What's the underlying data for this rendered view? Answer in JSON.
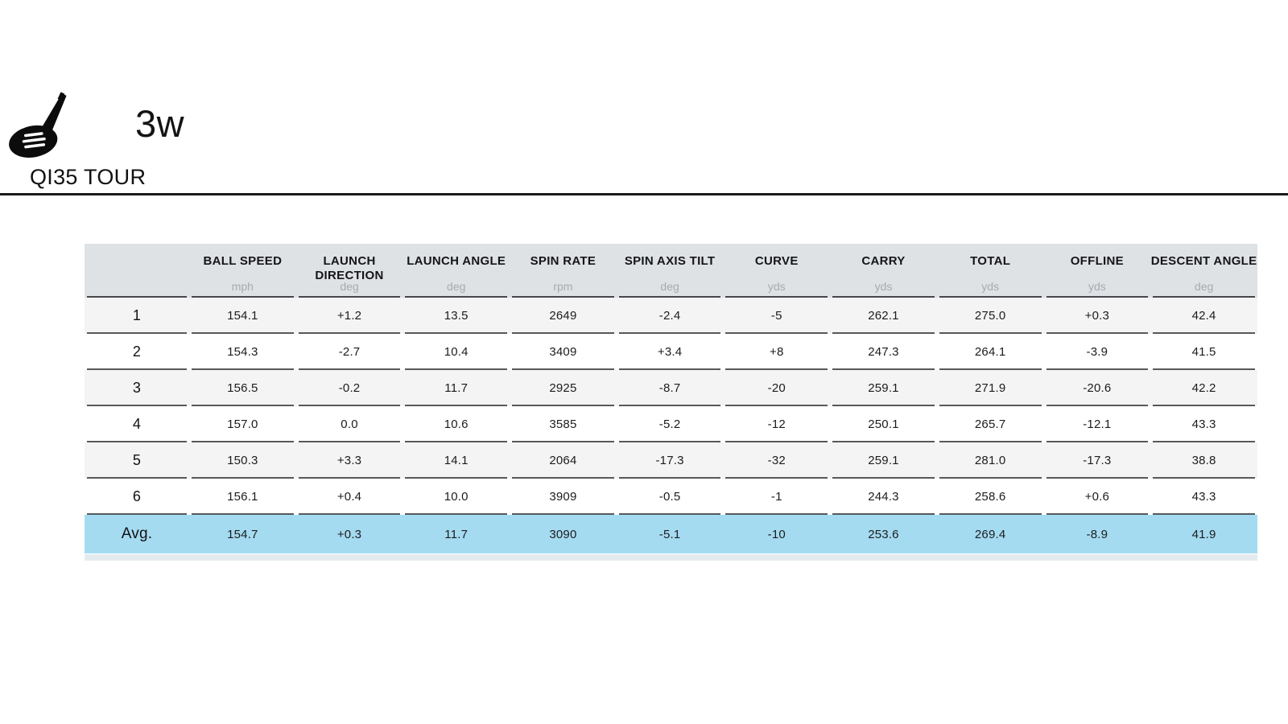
{
  "header": {
    "club_label": "3w",
    "club_model": "QI35 TOUR",
    "icon": "fairway-wood-club-icon"
  },
  "table": {
    "columns": [
      {
        "label": "BALL SPEED",
        "unit": "mph"
      },
      {
        "label": "LAUNCH DIRECTION",
        "unit": "deg"
      },
      {
        "label": "LAUNCH ANGLE",
        "unit": "deg"
      },
      {
        "label": "SPIN RATE",
        "unit": "rpm"
      },
      {
        "label": "SPIN AXIS TILT",
        "unit": "deg"
      },
      {
        "label": "CURVE",
        "unit": "yds"
      },
      {
        "label": "CARRY",
        "unit": "yds"
      },
      {
        "label": "TOTAL",
        "unit": "yds"
      },
      {
        "label": "OFFLINE",
        "unit": "yds"
      },
      {
        "label": "DESCENT ANGLE",
        "unit": "deg"
      }
    ],
    "rows": [
      {
        "label": "1",
        "values": [
          "154.1",
          "+1.2",
          "13.5",
          "2649",
          "-2.4",
          "-5",
          "262.1",
          "275.0",
          "+0.3",
          "42.4"
        ]
      },
      {
        "label": "2",
        "values": [
          "154.3",
          "-2.7",
          "10.4",
          "3409",
          "+3.4",
          "+8",
          "247.3",
          "264.1",
          "-3.9",
          "41.5"
        ]
      },
      {
        "label": "3",
        "values": [
          "156.5",
          "-0.2",
          "11.7",
          "2925",
          "-8.7",
          "-20",
          "259.1",
          "271.9",
          "-20.6",
          "42.2"
        ]
      },
      {
        "label": "4",
        "values": [
          "157.0",
          "0.0",
          "10.6",
          "3585",
          "-5.2",
          "-12",
          "250.1",
          "265.7",
          "-12.1",
          "43.3"
        ]
      },
      {
        "label": "5",
        "values": [
          "150.3",
          "+3.3",
          "14.1",
          "2064",
          "-17.3",
          "-32",
          "259.1",
          "281.0",
          "-17.3",
          "38.8"
        ]
      },
      {
        "label": "6",
        "values": [
          "156.1",
          "+0.4",
          "10.0",
          "3909",
          "-0.5",
          "-1",
          "244.3",
          "258.6",
          "+0.6",
          "43.3"
        ]
      }
    ],
    "average_row": {
      "label": "Avg.",
      "values": [
        "154.7",
        "+0.3",
        "11.7",
        "3090",
        "-5.1",
        "-10",
        "253.6",
        "269.4",
        "-8.9",
        "41.9"
      ]
    }
  },
  "colors": {
    "header_bg": "#dfe2e5",
    "row_odd_bg": "#f4f4f5",
    "row_even_bg": "#ffffff",
    "avg_row_bg": "#a5dbf1",
    "unit_text": "#a6aaae",
    "row_border": "#56585b",
    "divider": "#1a1a1a"
  }
}
